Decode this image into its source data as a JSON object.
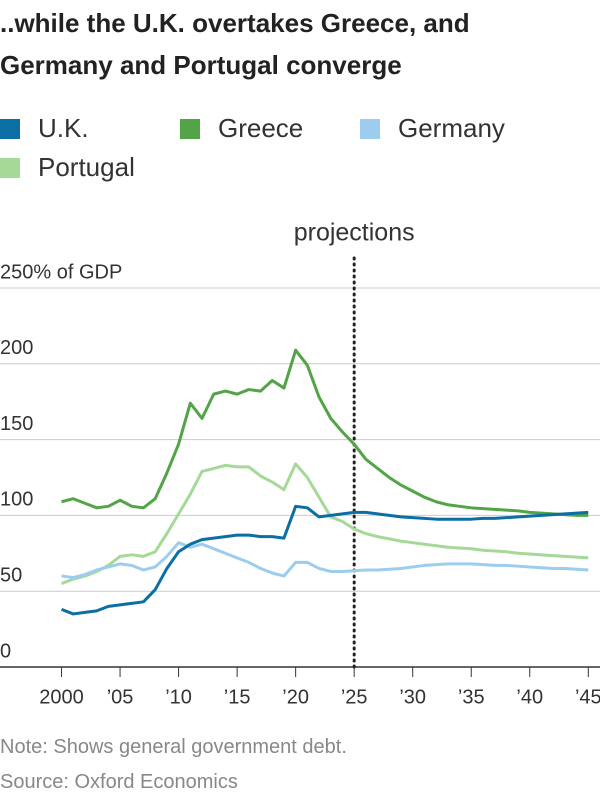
{
  "chart_data": {
    "type": "line",
    "title": "..while the U.K. overtakes Greece, and Germany and Portugal converge",
    "x": [
      2000,
      2001,
      2002,
      2003,
      2004,
      2005,
      2006,
      2007,
      2008,
      2009,
      2010,
      2011,
      2012,
      2013,
      2014,
      2015,
      2016,
      2017,
      2018,
      2019,
      2020,
      2021,
      2022,
      2023,
      2024,
      2025,
      2026,
      2027,
      2028,
      2029,
      2030,
      2031,
      2032,
      2033,
      2034,
      2035,
      2036,
      2037,
      2038,
      2039,
      2040,
      2041,
      2042,
      2043,
      2044,
      2045
    ],
    "series": [
      {
        "name": "U.K.",
        "color": "#0b6fa4",
        "values": [
          38,
          35,
          36,
          37,
          40,
          41,
          42,
          43,
          51,
          65,
          76,
          81,
          84,
          85,
          86,
          87,
          87,
          86,
          86,
          85,
          106,
          105,
          99,
          100,
          101,
          102,
          102,
          101,
          100,
          99,
          98.5,
          98,
          97.5,
          97.5,
          97.5,
          97.5,
          98,
          98,
          98.5,
          99,
          99.5,
          100,
          100.5,
          101,
          101.5,
          102
        ]
      },
      {
        "name": "Greece",
        "color": "#52a447",
        "values": [
          109,
          111,
          108,
          105,
          106,
          110,
          106,
          105,
          111,
          128,
          147,
          174,
          164,
          180,
          182,
          180,
          183,
          182,
          189,
          184,
          209,
          199,
          178,
          164,
          155,
          147,
          137,
          131,
          125,
          120,
          116,
          112,
          109,
          107,
          106,
          105,
          104.5,
          104,
          103.5,
          103,
          102,
          101.5,
          101,
          100.5,
          100,
          100
        ]
      },
      {
        "name": "Germany",
        "color": "#9dcdee",
        "values": [
          60,
          59,
          61,
          64,
          66,
          68,
          67,
          64,
          66,
          73,
          82,
          79,
          81,
          78,
          75,
          72,
          69,
          65,
          62,
          60,
          69,
          69,
          65,
          63,
          63,
          63.5,
          64,
          64,
          64.5,
          65,
          66,
          67,
          67.5,
          68,
          68,
          68,
          67.5,
          67,
          67,
          66.5,
          66,
          65.5,
          65,
          65,
          64.5,
          64
        ]
      },
      {
        "name": "Portugal",
        "color": "#a6d997",
        "values": [
          55,
          58,
          60,
          63,
          67,
          73,
          74,
          73,
          76,
          88,
          101,
          114,
          129,
          131,
          133,
          132,
          132,
          126,
          122,
          117,
          134,
          125,
          112,
          99,
          96,
          91,
          88,
          86,
          84.5,
          83,
          82,
          81,
          80,
          79,
          78.5,
          78,
          77,
          76.5,
          76,
          75,
          74.5,
          74,
          73.5,
          73,
          72.5,
          72
        ]
      }
    ],
    "xlim": [
      1995,
      2046
    ],
    "xticks": [
      2000,
      {
        "value": 2005,
        "label": "’05"
      },
      {
        "value": 2010,
        "label": "’10"
      },
      {
        "value": 2015,
        "label": "’15"
      },
      {
        "value": 2020,
        "label": "’20"
      },
      {
        "value": 2025,
        "label": "’25"
      },
      {
        "value": 2030,
        "label": "’30"
      },
      {
        "value": 2035,
        "label": "’35"
      },
      {
        "value": 2040,
        "label": "’40"
      },
      {
        "value": 2045,
        "label": "’45"
      }
    ],
    "ylim": [
      0,
      250
    ],
    "yticks": [
      0,
      50,
      100,
      150,
      200,
      {
        "value": 250,
        "label": "250% of GDP"
      }
    ],
    "grid": true,
    "annotation": {
      "x": 2025,
      "label": "projections"
    },
    "note": "Note: Shows general government debt.",
    "source": "Source: Oxford Economics"
  }
}
